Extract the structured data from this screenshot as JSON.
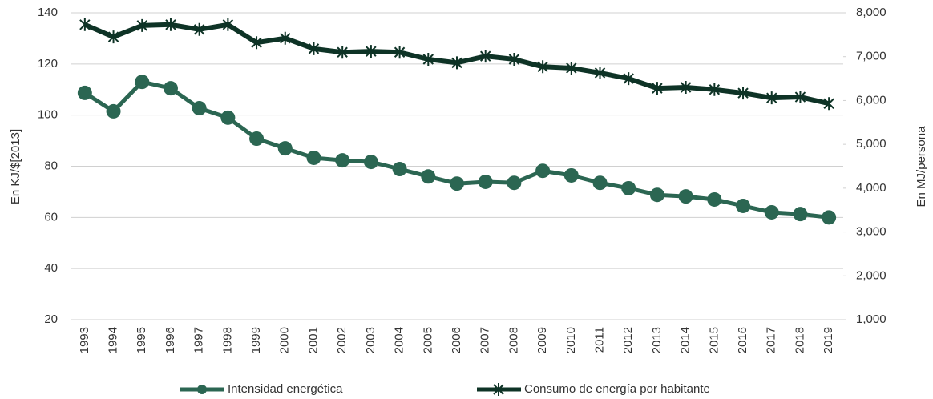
{
  "chart_data": {
    "type": "line",
    "y_label": "En KJ/$[2013]",
    "y2_label": "En MJ/persona",
    "categories": [
      "1993",
      "1994",
      "1995",
      "1996",
      "1997",
      "1998",
      "1999",
      "2000",
      "2001",
      "2002",
      "2003",
      "2004",
      "2005",
      "2006",
      "2007",
      "2008",
      "2009",
      "2010",
      "2011",
      "2012",
      "2013",
      "2014",
      "2015",
      "2016",
      "2017",
      "2018",
      "2019"
    ],
    "series": [
      {
        "name": "Intensidad energética",
        "color": "#2b6652",
        "marker": "circle",
        "values": [
          108.7,
          101.5,
          113,
          110.5,
          102.7,
          99,
          90.8,
          87,
          83.3,
          82.3,
          81.7,
          78.9,
          76,
          73.2,
          73.9,
          73.5,
          78.2,
          76.4,
          73.5,
          71.4,
          68.8,
          68.2,
          67,
          64.5,
          62,
          61.3,
          60
        ]
      },
      {
        "name": "Consumo de energía por habitante",
        "color": "#0e3326",
        "marker": "star",
        "axis": "y2",
        "values": [
          7730,
          7450,
          7710,
          7730,
          7620,
          7730,
          7320,
          7420,
          7180,
          7100,
          7120,
          7100,
          6940,
          6860,
          7010,
          6940,
          6770,
          6740,
          6630,
          6500,
          6280,
          6300,
          6250,
          6170,
          6060,
          6080,
          5930
        ]
      }
    ],
    "ylim": [
      20,
      140
    ],
    "yticks": [
      20,
      40,
      60,
      80,
      100,
      120,
      140
    ],
    "y2lim": [
      1000,
      8000
    ],
    "y2ticks": [
      {
        "value": 1000,
        "label": "1,000"
      },
      {
        "value": 2000,
        "label": "2,000"
      },
      {
        "value": 3000,
        "label": "3,000"
      },
      {
        "value": 4000,
        "label": "4,000"
      },
      {
        "value": 5000,
        "label": "5,000"
      },
      {
        "value": 6000,
        "label": "6,000"
      },
      {
        "value": 7000,
        "label": "7,000"
      },
      {
        "value": 8000,
        "label": "8,000"
      }
    ],
    "grid": true,
    "legend": "bottom"
  }
}
